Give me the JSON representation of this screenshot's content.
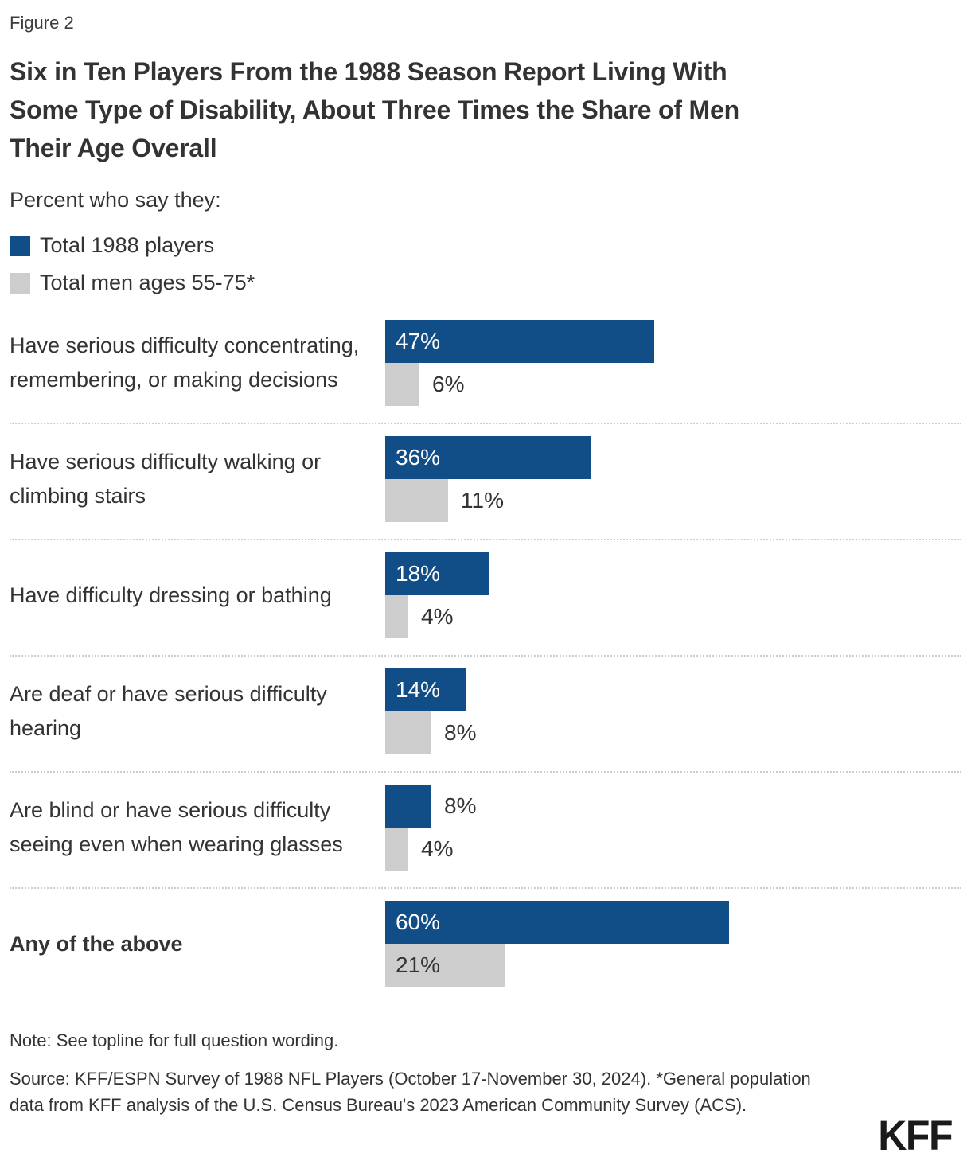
{
  "figure_label": "Figure 2",
  "title_lines": [
    "Six in Ten Players From the 1988 Season Report Living With",
    "Some Type of Disability, About Three Times the Share of Men",
    "Their Age Overall"
  ],
  "subtitle": "Percent who say they:",
  "legend": [
    {
      "label": "Total 1988 players",
      "color": "#114E87"
    },
    {
      "label": "Total men ages 55-75*",
      "color": "#CDCDCD"
    }
  ],
  "chart_data": {
    "type": "bar",
    "orientation": "horizontal",
    "title": "Six in Ten Players From the 1988 Season Report Living With Some Type of Disability, About Three Times the Share of Men Their Age Overall",
    "xlabel": "",
    "ylabel": "",
    "xlim": [
      0,
      65
    ],
    "grid": false,
    "legend_position": "top-left",
    "value_suffix": "%",
    "categories": [
      "Have serious difficulty concentrating, remembering, or making decisions",
      "Have serious difficulty walking or climbing stairs",
      "Have difficulty dressing or bathing",
      "Are deaf or have serious difficulty hearing",
      "Are blind or have serious difficulty seeing even when wearing glasses",
      "Any of the above"
    ],
    "category_emphasis": [
      false,
      false,
      false,
      false,
      false,
      true
    ],
    "series": [
      {
        "name": "Total 1988 players",
        "color": "#114E87",
        "values": [
          47,
          36,
          18,
          14,
          8,
          60
        ]
      },
      {
        "name": "Total men ages 55-75*",
        "color": "#CDCDCD",
        "values": [
          6,
          11,
          4,
          8,
          4,
          21
        ]
      }
    ]
  },
  "colors": {
    "players_blue": "#114E87",
    "men_gray": "#CDCDCD",
    "text_dark": "#333333",
    "separator": "#CCCCCC",
    "value_on_blue": "#FFFFFF"
  },
  "footer": {
    "note": "Note: See topline for full question wording.",
    "source": "Source: KFF/ESPN Survey of 1988 NFL Players (October 17-November 30, 2024). *General population data from KFF analysis of the U.S. Census Bureau's 2023 American Community Survey (ACS).",
    "logo": "KFF"
  }
}
